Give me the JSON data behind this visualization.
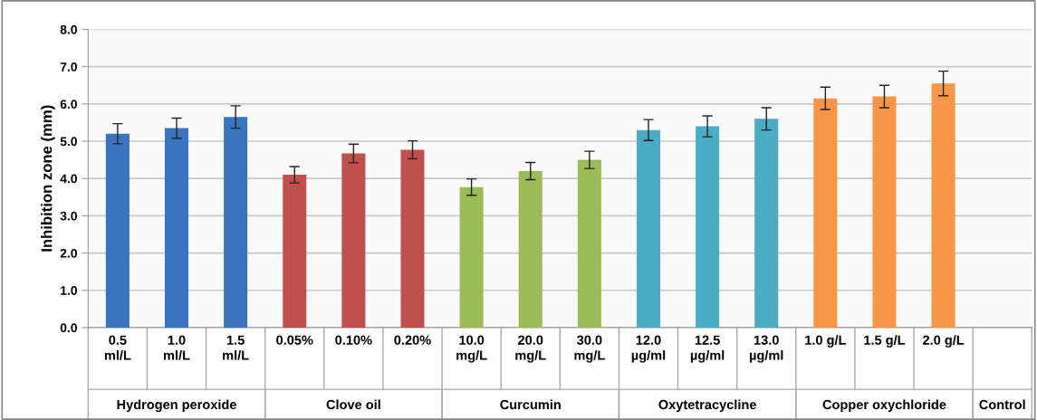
{
  "chart_data": {
    "type": "bar",
    "ylabel": "Inhibition zone (mm)",
    "categories": [
      "0.5\nml/L",
      "1.0\nml/L",
      "1.5\nml/L",
      "0.05%",
      "0.10%",
      "0.20%",
      "10.0\nmg/L",
      "20.0\nmg/L",
      "30.0\nmg/L",
      "12.0\nµg/ml",
      "12.5\nµg/ml",
      "13.0\nµg/ml",
      "1.0 g/L",
      "1.5 g/L",
      "2.0 g/L",
      null
    ],
    "values": [
      5.2,
      5.35,
      5.65,
      4.1,
      4.67,
      4.77,
      3.77,
      4.2,
      4.5,
      5.3,
      5.4,
      5.6,
      6.15,
      6.2,
      6.55,
      null
    ],
    "errors": [
      0.27,
      0.27,
      0.3,
      0.22,
      0.25,
      0.24,
      0.22,
      0.23,
      0.23,
      0.28,
      0.28,
      0.3,
      0.3,
      0.3,
      0.33,
      null
    ],
    "colors": [
      "#3a73c0",
      "#3a73c0",
      "#3a73c0",
      "#c0504d",
      "#c0504d",
      "#c0504d",
      "#9bbb59",
      "#9bbb59",
      "#9bbb59",
      "#4bacc6",
      "#4bacc6",
      "#4bacc6",
      "#f79646",
      "#f79646",
      "#f79646",
      "#f79646"
    ],
    "annotations": [
      "Hydrogen peroxide",
      "Clove oil",
      "Curcumin",
      "Oxytetracycline",
      "Copper oxychloride",
      "Control"
    ],
    "ylim": [
      0,
      8
    ],
    "yticks": [
      {
        "value": 0,
        "label": "0.0"
      },
      {
        "value": 1,
        "label": "1.0"
      },
      {
        "value": 2,
        "label": "2.0"
      },
      {
        "value": 3,
        "label": "3.0"
      },
      {
        "value": 4,
        "label": "4.0"
      },
      {
        "value": 5,
        "label": "5.0"
      },
      {
        "value": 6,
        "label": "6.0"
      },
      {
        "value": 7,
        "label": "7.0"
      },
      {
        "value": 8,
        "label": "8.0"
      }
    ],
    "grid": "y",
    "legend": false
  }
}
